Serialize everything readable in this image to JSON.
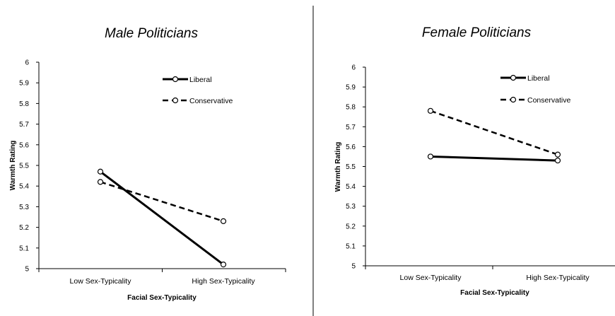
{
  "chart_data": [
    {
      "type": "line",
      "title": "Male Politicians",
      "xlabel": "Facial Sex-Typicality",
      "ylabel": "Warmth Rating",
      "categories": [
        "Low Sex-Typicality",
        "High Sex-Typicality"
      ],
      "ylim": [
        5,
        6
      ],
      "yticks": [
        "5",
        "5.1",
        "5.2",
        "5.3",
        "5.4",
        "5.5",
        "5.6",
        "5.7",
        "5.8",
        "5.9",
        "6"
      ],
      "legend_position": "top-right",
      "series": [
        {
          "name": "Liberal",
          "style": "solid",
          "values": [
            5.47,
            5.02
          ]
        },
        {
          "name": "Conservative",
          "style": "dashed",
          "values": [
            5.42,
            5.23
          ]
        }
      ]
    },
    {
      "type": "line",
      "title": "Female Politicians",
      "xlabel": "Facial Sex-Typicality",
      "ylabel": "Warmth Rating",
      "categories": [
        "Low Sex-Typicality",
        "High Sex-Typicality"
      ],
      "ylim": [
        5,
        6
      ],
      "yticks": [
        "5",
        "5.1",
        "5.2",
        "5.3",
        "5.4",
        "5.5",
        "5.6",
        "5.7",
        "5.8",
        "5.9",
        "6"
      ],
      "legend_position": "top-right",
      "series": [
        {
          "name": "Liberal",
          "style": "solid",
          "values": [
            5.55,
            5.53
          ]
        },
        {
          "name": "Conservative",
          "style": "dashed",
          "values": [
            5.78,
            5.56
          ]
        }
      ]
    }
  ]
}
